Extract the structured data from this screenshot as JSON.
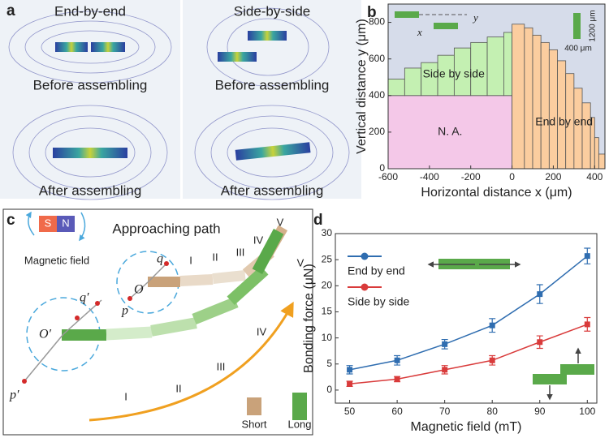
{
  "panel_labels": [
    "a",
    "b",
    "c",
    "d"
  ],
  "panel_a": {
    "left_title": "End-by-end",
    "right_title": "Side-by-side",
    "before": [
      "Before assembling",
      "Before assembling"
    ],
    "after": [
      "After assembling",
      "After assembling"
    ]
  },
  "panel_c": {
    "title": "Approaching path",
    "magnet": [
      "S",
      "N"
    ],
    "magnet_label": "Magnetic field",
    "short_points": [
      "O",
      "q",
      "p"
    ],
    "long_points": [
      "O′",
      "q′",
      "p′"
    ],
    "short_stages": [
      "I",
      "II",
      "III",
      "IV",
      "V"
    ],
    "long_stages": [
      "I",
      "II",
      "III",
      "IV",
      "V"
    ],
    "legend": [
      "Short",
      "Long"
    ]
  },
  "chart_data": [
    {
      "type": "region",
      "xlabel": "Horizontal distance x (μm)",
      "ylabel": "Vertical distance y (μm)",
      "xlim": [
        -600,
        450
      ],
      "ylim": [
        0,
        900
      ],
      "xticks": [
        -600,
        -400,
        -200,
        0,
        200,
        400
      ],
      "yticks": [
        0,
        200,
        400,
        600,
        800
      ],
      "background": "#d6dcea",
      "regions": [
        {
          "name": "N. A.",
          "color": "#f4c8e8",
          "x_edges": [
            -600,
            0
          ],
          "bottom": [
            0
          ],
          "top": [
            400
          ]
        },
        {
          "name": "Side by side",
          "color": "#c4f0b2",
          "x_edges": [
            -600,
            -520,
            -440,
            -360,
            -280,
            -200,
            -120,
            -40,
            0
          ],
          "bottom": [
            400,
            400,
            400,
            400,
            400,
            400,
            400,
            400
          ],
          "top": [
            490,
            550,
            580,
            620,
            660,
            690,
            720,
            745
          ]
        },
        {
          "name": "End by end",
          "color": "#fbcd9f",
          "x_edges": [
            0,
            60,
            100,
            140,
            180,
            220,
            260,
            300,
            340,
            380,
            400,
            420,
            450
          ],
          "bottom": [
            0,
            0,
            0,
            0,
            0,
            0,
            0,
            0,
            0,
            0,
            0,
            0
          ],
          "top": [
            790,
            770,
            730,
            690,
            650,
            590,
            520,
            440,
            360,
            280,
            170,
            80
          ]
        }
      ],
      "inset": {
        "x": "x",
        "y": "y",
        "height": "1200 μm",
        "width": "400 μm"
      }
    },
    {
      "type": "line",
      "xlabel": "Magnetic field (mT)",
      "ylabel": "Bonding force (μN)",
      "x": [
        50,
        60,
        70,
        80,
        90,
        100
      ],
      "xlim": [
        47,
        102
      ],
      "ylim": [
        -2.5,
        30
      ],
      "xticks": [
        50,
        60,
        70,
        80,
        90,
        100
      ],
      "yticks": [
        0,
        5,
        10,
        15,
        20,
        25,
        30
      ],
      "series": [
        {
          "name": "End by end",
          "color": "#2f6db0",
          "values": [
            3.9,
            5.7,
            8.8,
            12.4,
            18.4,
            25.7
          ],
          "errors": [
            0.8,
            0.9,
            0.9,
            1.3,
            1.8,
            1.5
          ]
        },
        {
          "name": "Side by side",
          "color": "#d93b3b",
          "values": [
            1.2,
            2.1,
            3.9,
            5.7,
            9.2,
            12.6
          ],
          "errors": [
            0.5,
            0.5,
            0.8,
            0.9,
            1.2,
            1.3
          ]
        }
      ]
    }
  ]
}
